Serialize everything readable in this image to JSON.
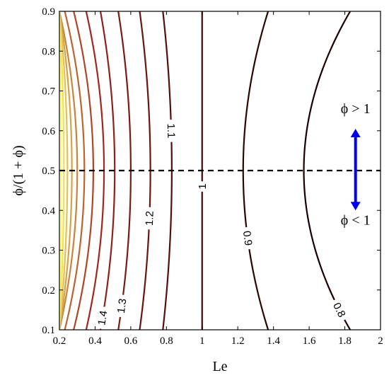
{
  "chart_data": {
    "type": "contour",
    "xlabel": "Le",
    "ylabel": "ϕ/(1 + ϕ)",
    "xlim": [
      0.2,
      2
    ],
    "ylim": [
      0.1,
      0.9
    ],
    "xticks": [
      "0.2",
      "0.4",
      "0.6",
      "0.8",
      "1",
      "1.2",
      "1.4",
      "1.6",
      "1.8",
      "2"
    ],
    "yticks": [
      "0.1",
      "0.2",
      "0.3",
      "0.4",
      "0.5",
      "0.6",
      "0.7",
      "0.8",
      "0.9"
    ],
    "grid": false,
    "colors": {
      "low": "#1a0000",
      "mid": "#a0261f",
      "high": "#ffff66",
      "stoich_line": "#000000",
      "arrow": "#0000ee"
    },
    "contours": [
      {
        "level": 0.8,
        "label": "0.8",
        "le_at_mid": 1.57,
        "le_at_edge": 1.83
      },
      {
        "level": 0.9,
        "label": "0.9",
        "le_at_mid": 1.23,
        "le_at_edge": 1.37
      },
      {
        "level": 1.0,
        "label": "1",
        "le_at_mid": 1.0,
        "le_at_edge": 1.0
      },
      {
        "level": 1.1,
        "label": "1.1",
        "le_at_mid": 0.83,
        "le_at_edge": 0.78
      },
      {
        "level": 1.2,
        "label": "1.2",
        "le_at_mid": 0.71,
        "le_at_edge": 0.65
      },
      {
        "level": 1.3,
        "label": "1.3",
        "le_at_mid": 0.6,
        "le_at_edge": 0.53
      },
      {
        "level": 1.4,
        "label": "1.4",
        "le_at_mid": 0.51,
        "le_at_edge": 0.43
      },
      {
        "level": 1.5,
        "label": "",
        "le_at_mid": 0.45,
        "le_at_edge": 0.35
      },
      {
        "level": 1.6,
        "label": "",
        "le_at_mid": 0.39,
        "le_at_edge": 0.28
      },
      {
        "level": 1.7,
        "label": "",
        "le_at_mid": 0.34,
        "le_at_edge": 0.23
      },
      {
        "level": 1.8,
        "label": "",
        "le_at_mid": 0.3,
        "le_at_edge": 0.2
      },
      {
        "level": 1.9,
        "label": "",
        "le_at_mid": 0.27,
        "le_at_edge": 0.2
      },
      {
        "level": 2.0,
        "label": "",
        "le_at_mid": 0.245,
        "le_at_edge": 0.2
      },
      {
        "level": 2.1,
        "label": "",
        "le_at_mid": 0.225,
        "le_at_edge": 0.2
      },
      {
        "level": 2.2,
        "label": "",
        "le_at_mid": 0.21,
        "le_at_edge": 0.2
      }
    ],
    "stoichiometric_line": {
      "y": 0.5
    },
    "annotations": {
      "rich": "ϕ > 1",
      "lean": "ϕ < 1",
      "arrow_x": 1.86,
      "arrow_y_top": 0.605,
      "arrow_y_bottom": 0.4
    }
  }
}
